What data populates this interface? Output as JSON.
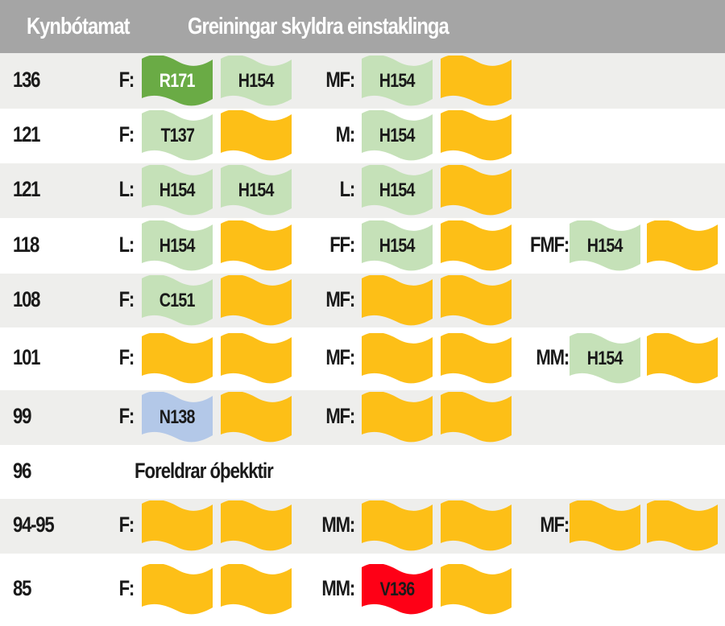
{
  "header": {
    "col1": "Kynbótamat",
    "col2": "Greiningar skyldra einstaklinga",
    "background": "#a5a5a5"
  },
  "colors": {
    "dark_green": "#6aab45",
    "light_green": "#c5e1b8",
    "yellow": "#fdbf17",
    "blue": "#b3c8e8",
    "red": "#fe0016",
    "row_shade": "#eeeeec"
  },
  "rows": [
    {
      "score": "136",
      "groups": [
        {
          "label": "F:",
          "flags": [
            {
              "text": "R171",
              "color": "dark_green"
            },
            {
              "text": "H154",
              "color": "light_green"
            }
          ]
        },
        {
          "label": "MF:",
          "flags": [
            {
              "text": "H154",
              "color": "light_green"
            },
            {
              "text": "",
              "color": "yellow"
            }
          ]
        }
      ]
    },
    {
      "score": "121",
      "groups": [
        {
          "label": "F:",
          "flags": [
            {
              "text": "T137",
              "color": "light_green"
            },
            {
              "text": "",
              "color": "yellow"
            }
          ]
        },
        {
          "label": "M:",
          "flags": [
            {
              "text": "H154",
              "color": "light_green"
            },
            {
              "text": "",
              "color": "yellow"
            }
          ]
        }
      ]
    },
    {
      "score": "121",
      "groups": [
        {
          "label": "L:",
          "flags": [
            {
              "text": "H154",
              "color": "light_green"
            },
            {
              "text": "H154",
              "color": "light_green"
            }
          ]
        },
        {
          "label": "L:",
          "flags": [
            {
              "text": "H154",
              "color": "light_green"
            },
            {
              "text": "",
              "color": "yellow"
            }
          ]
        }
      ]
    },
    {
      "score": "118",
      "groups": [
        {
          "label": "L:",
          "flags": [
            {
              "text": "H154",
              "color": "light_green"
            },
            {
              "text": "",
              "color": "yellow"
            }
          ]
        },
        {
          "label": "FF:",
          "flags": [
            {
              "text": "H154",
              "color": "light_green"
            },
            {
              "text": "",
              "color": "yellow"
            }
          ]
        },
        {
          "label": "FMF:",
          "flags": [
            {
              "text": "H154",
              "color": "light_green"
            },
            {
              "text": "",
              "color": "yellow"
            }
          ]
        }
      ]
    },
    {
      "score": "108",
      "groups": [
        {
          "label": "F:",
          "flags": [
            {
              "text": "C151",
              "color": "light_green"
            },
            {
              "text": "",
              "color": "yellow"
            }
          ]
        },
        {
          "label": "MF:",
          "flags": [
            {
              "text": "",
              "color": "yellow"
            },
            {
              "text": "",
              "color": "yellow"
            }
          ]
        }
      ]
    },
    {
      "score": "101",
      "groups": [
        {
          "label": "F:",
          "flags": [
            {
              "text": "",
              "color": "yellow"
            },
            {
              "text": "",
              "color": "yellow"
            }
          ]
        },
        {
          "label": "MF:",
          "flags": [
            {
              "text": "",
              "color": "yellow"
            },
            {
              "text": "",
              "color": "yellow"
            }
          ]
        },
        {
          "label": "MM:",
          "flags": [
            {
              "text": "H154",
              "color": "light_green"
            },
            {
              "text": "",
              "color": "yellow"
            }
          ]
        }
      ]
    },
    {
      "score": "99",
      "groups": [
        {
          "label": "F:",
          "flags": [
            {
              "text": "N138",
              "color": "blue"
            },
            {
              "text": "",
              "color": "yellow"
            }
          ]
        },
        {
          "label": "MF:",
          "flags": [
            {
              "text": "",
              "color": "yellow"
            },
            {
              "text": "",
              "color": "yellow"
            }
          ]
        }
      ]
    },
    {
      "score": "96",
      "note": "Foreldrar óþekktir",
      "groups": []
    },
    {
      "score": "94-95",
      "groups": [
        {
          "label": "F:",
          "flags": [
            {
              "text": "",
              "color": "yellow"
            },
            {
              "text": "",
              "color": "yellow"
            }
          ]
        },
        {
          "label": "MM:",
          "flags": [
            {
              "text": "",
              "color": "yellow"
            },
            {
              "text": "",
              "color": "yellow"
            }
          ]
        },
        {
          "label": "MF:",
          "flags": [
            {
              "text": "",
              "color": "yellow"
            },
            {
              "text": "",
              "color": "yellow"
            }
          ]
        }
      ]
    },
    {
      "score": "85",
      "groups": [
        {
          "label": "F:",
          "flags": [
            {
              "text": "",
              "color": "yellow"
            },
            {
              "text": "",
              "color": "yellow"
            }
          ]
        },
        {
          "label": "MM:",
          "flags": [
            {
              "text": "V136",
              "color": "red"
            },
            {
              "text": "",
              "color": "yellow"
            }
          ]
        }
      ]
    }
  ]
}
